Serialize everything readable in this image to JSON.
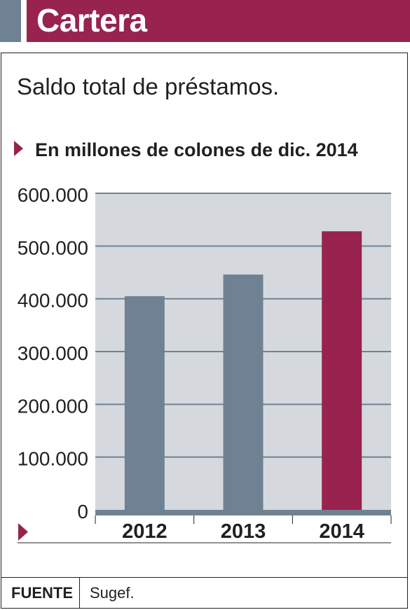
{
  "header": {
    "title": "Cartera"
  },
  "subtitle": "Saldo total de préstamos.",
  "unit_label": "En millones de colones de dic. 2014",
  "footer": {
    "source_key": "FUENTE",
    "source_value": "Sugef."
  },
  "colors": {
    "brand": "#97234e",
    "bar": "#6e8294",
    "highlight": "#97234e",
    "plot_bg": "#d5d9de",
    "grid": "#6e8294"
  },
  "chart_data": {
    "type": "bar",
    "categories": [
      "2012",
      "2013",
      "2014"
    ],
    "values": [
      405000,
      446000,
      528000
    ],
    "highlight_index": 2,
    "ylim": [
      0,
      600000
    ],
    "yticks": [
      0,
      100000,
      200000,
      300000,
      400000,
      500000,
      600000
    ],
    "ytick_labels": [
      "0",
      "100.000",
      "200.000",
      "300.000",
      "400.000",
      "500.000",
      "600.000"
    ],
    "title": "",
    "xlabel": "",
    "ylabel": "",
    "grid": true
  }
}
